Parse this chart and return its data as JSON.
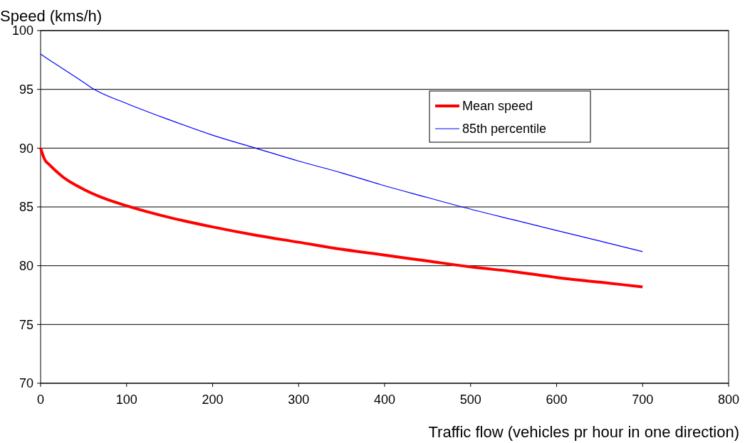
{
  "chart_data": {
    "type": "line",
    "xlabel": "Traffic flow (vehicles pr hour in one direction)",
    "ylabel": "Speed (kms/h)",
    "xlim": [
      0,
      800
    ],
    "xticks": [
      0,
      100,
      200,
      300,
      400,
      500,
      600,
      700,
      800
    ],
    "ylim": [
      70,
      100
    ],
    "yticks": [
      70,
      75,
      80,
      85,
      90,
      95,
      100
    ],
    "grid": "y",
    "legend": "top right",
    "line_style": "solid",
    "series": [
      {
        "name": "Mean speed",
        "color": "#ff0000",
        "x": [
          0,
          5,
          10,
          25,
          50,
          75,
          100,
          150,
          200,
          250,
          300,
          350,
          400,
          450,
          500,
          550,
          600,
          650,
          700
        ],
        "values": [
          90,
          89,
          88.6,
          87.6,
          86.5,
          85.7,
          85.1,
          84.1,
          83.3,
          82.6,
          82,
          81.4,
          80.9,
          80.4,
          79.9,
          79.5,
          79,
          78.6,
          78.2
        ]
      },
      {
        "name": "85th percentile",
        "color": "#0000ff",
        "x": [
          0,
          10,
          25,
          50,
          60,
          100,
          150,
          200,
          250,
          300,
          350,
          400,
          450,
          490,
          550,
          600,
          650,
          700
        ],
        "values": [
          98,
          97.5,
          96.8,
          95.6,
          95.1,
          93.8,
          92.4,
          91.1,
          90,
          88.9,
          87.9,
          86.8,
          85.8,
          85,
          83.9,
          83,
          82.1,
          81.2
        ]
      }
    ]
  }
}
